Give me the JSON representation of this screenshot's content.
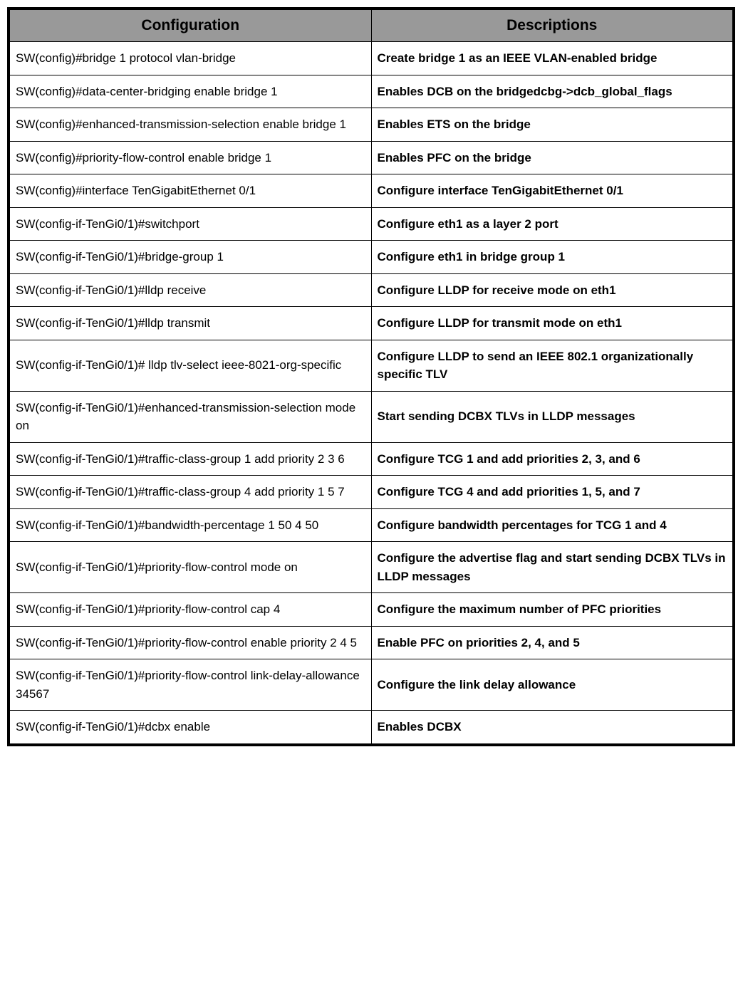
{
  "table": {
    "headers": {
      "config": "Configuration",
      "desc": "Descriptions"
    },
    "header_bg_color": "#999999",
    "header_fontsize": 21,
    "cell_fontsize": 17,
    "border_color": "#000000",
    "rows": [
      {
        "config": "SW(config)#bridge 1 protocol vlan-bridge",
        "desc": "Create bridge 1 as an IEEE VLAN-enabled bridge"
      },
      {
        "config": "SW(config)#data-center-bridging enable bridge 1",
        "desc": "Enables DCB on the bridgedcbg->dcb_global_flags"
      },
      {
        "config": "SW(config)#enhanced-transmission-selection enable bridge 1",
        "desc": "Enables ETS on the bridge"
      },
      {
        "config": "SW(config)#priority-flow-control enable bridge 1",
        "desc": "Enables PFC on the bridge"
      },
      {
        "config": "SW(config)#interface TenGigabitEthernet 0/1",
        "desc": "Configure interface TenGigabitEthernet 0/1"
      },
      {
        "config": "SW(config-if-TenGi0/1)#switchport",
        "desc": "Configure eth1 as a layer 2 port"
      },
      {
        "config": "SW(config-if-TenGi0/1)#bridge-group 1",
        "desc": "Configure eth1 in bridge group 1"
      },
      {
        "config": "SW(config-if-TenGi0/1)#lldp receive",
        "desc": "Configure LLDP for receive mode on eth1"
      },
      {
        "config": "SW(config-if-TenGi0/1)#lldp transmit",
        "desc": "Configure LLDP for transmit mode on eth1"
      },
      {
        "config": "SW(config-if-TenGi0/1)# lldp tlv-select ieee-8021-org-specific",
        "desc": "Configure LLDP to send an IEEE 802.1 organizationally specific TLV"
      },
      {
        "config": "SW(config-if-TenGi0/1)#enhanced-transmission-selection mode on",
        "desc": "Start sending DCBX TLVs in LLDP messages"
      },
      {
        "config": "SW(config-if-TenGi0/1)#traffic-class-group 1 add priority 2 3 6",
        "desc": "Configure TCG 1 and add priorities 2, 3, and 6"
      },
      {
        "config": "SW(config-if-TenGi0/1)#traffic-class-group 4 add priority 1 5 7",
        "desc": "Configure TCG 4 and add priorities 1, 5, and 7"
      },
      {
        "config": "SW(config-if-TenGi0/1)#bandwidth-percentage 1 50 4 50",
        "desc": "Configure bandwidth percentages for TCG 1 and 4"
      },
      {
        "config": "SW(config-if-TenGi0/1)#priority-flow-control mode on",
        "desc": "Configure the advertise flag and start sending DCBX TLVs in\nLLDP messages"
      },
      {
        "config": "SW(config-if-TenGi0/1)#priority-flow-control cap 4",
        "desc": "Configure the maximum number of PFC priorities"
      },
      {
        "config": "SW(config-if-TenGi0/1)#priority-flow-control enable priority 2 4 5",
        "desc": "Enable PFC on priorities 2, 4, and 5"
      },
      {
        "config": "SW(config-if-TenGi0/1)#priority-flow-control link-delay-allowance 34567",
        "desc": "Configure the link delay allowance"
      },
      {
        "config": "SW(config-if-TenGi0/1)#dcbx enable",
        "desc": "Enables DCBX"
      }
    ]
  }
}
